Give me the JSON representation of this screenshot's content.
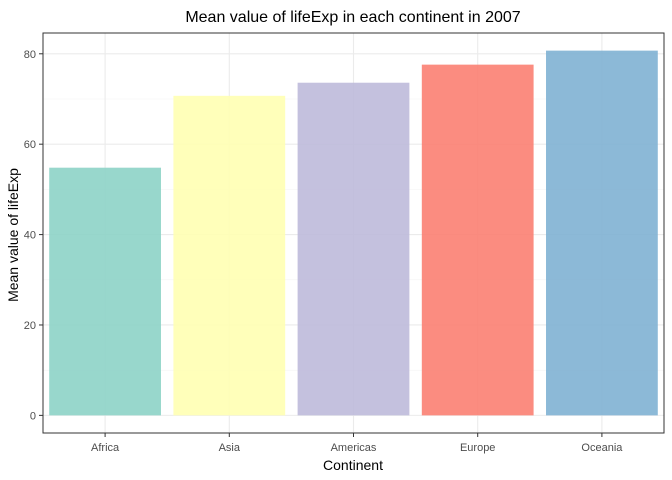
{
  "chart_data": {
    "type": "bar",
    "title": "Mean value of lifeExp in each continent in 2007",
    "xlabel": "Continent",
    "ylabel": "Mean value of lifeExp",
    "categories": [
      "Africa",
      "Asia",
      "Americas",
      "Europe",
      "Oceania"
    ],
    "values": [
      54.8,
      70.7,
      73.6,
      77.6,
      80.7
    ],
    "colors": [
      "#8DD3C7",
      "#FFFFB3",
      "#BEBADA",
      "#FB8072",
      "#80B1D3"
    ],
    "y_ticks": [
      0,
      20,
      40,
      60,
      80
    ],
    "ylim": [
      -3.9,
      84.6
    ],
    "grid": true,
    "legend": "none",
    "panel_border_color": "#333333",
    "grid_major_color": "#ebebeb",
    "grid_minor_color": "#f3f3f3"
  }
}
